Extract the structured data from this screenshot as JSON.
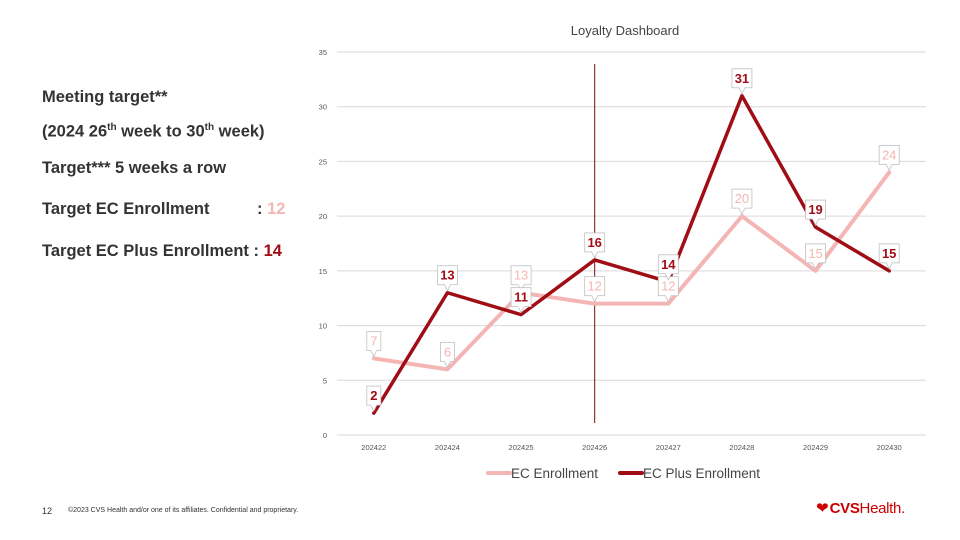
{
  "left_panel": {
    "line1": "Meeting target**",
    "line2_pre": "(2024 26",
    "line2_sup1": "th",
    "line2_mid": " week to 30",
    "line2_sup2": "th",
    "line2_post": " week)",
    "line3": "Target*** 5 weeks a row",
    "target_ec_label": "Target EC Enrollment",
    "target_ec_value": "12",
    "target_ecp_label": "Target EC Plus Enrollment",
    "target_ecp_value": "14",
    "colon": ": "
  },
  "colors": {
    "ec": "#f4b6b5",
    "ec_plus": "#a00d15",
    "grid": "#d9d9d9",
    "marker_line": "#7a0c10"
  },
  "chart_data": {
    "type": "line",
    "title": "Loyalty Dashboard",
    "categories": [
      "202422",
      "202424",
      "202425",
      "202426",
      "202427",
      "202428",
      "202429",
      "202430"
    ],
    "series": [
      {
        "name": "EC Enrollment",
        "values": [
          7,
          6,
          13,
          12,
          12,
          20,
          15,
          24
        ]
      },
      {
        "name": "EC Plus Enrollment",
        "values": [
          2,
          13,
          11,
          16,
          14,
          31,
          19,
          15
        ]
      }
    ],
    "ylim": [
      0,
      35
    ],
    "yticks": [
      "0",
      "5",
      "10",
      "15",
      "20",
      "25",
      "30",
      "35"
    ],
    "grid": true,
    "legend": "bottom",
    "vertical_marker_category": "202426"
  },
  "footer": {
    "page_number": "12",
    "copyright": "©2023 CVS Health and/or one of its affiliates. Confidential and proprietary."
  },
  "logo": {
    "icon": "heart-icon",
    "brand": "CVS",
    "suffix": "Health",
    "mark": "."
  }
}
